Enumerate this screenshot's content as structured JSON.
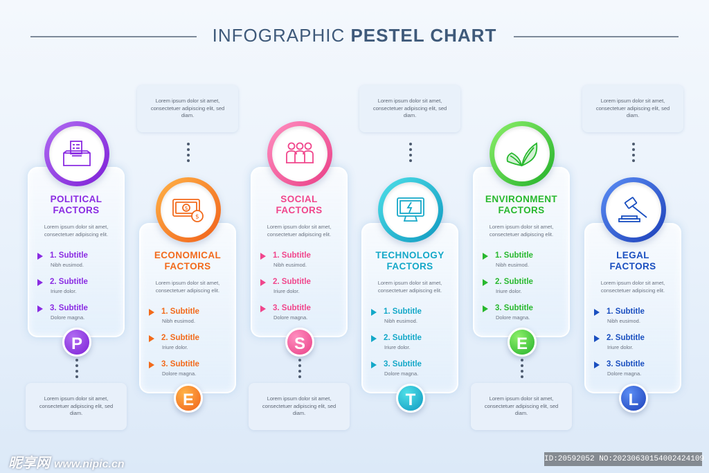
{
  "title": {
    "part1": "INFOGRAPHIC ",
    "part2": "PESTEL CHART"
  },
  "lorem_short": "Lorem ipsum dolor sit amet, consectetuer adipiscing elit.",
  "lorem_note": "Lorem ipsum dolor sit amet, consectetuer adipiscing elit, sed diam.",
  "factors": [
    {
      "letter": "P",
      "title_line1": "POLITICAL",
      "title_line2": "FACTORS",
      "color": "#8a2be2",
      "icon": "ballot-box-icon",
      "items": [
        {
          "title": "1. Subtitle",
          "sub": "Nibh eusimod."
        },
        {
          "title": "2. Subtitle",
          "sub": "Iriure dolor."
        },
        {
          "title": "3. Subtitle",
          "sub": "Dolore magna."
        }
      ]
    },
    {
      "letter": "E",
      "title_line1": "ECONOMICAL",
      "title_line2": "FACTORS",
      "color": "#f26a1b",
      "icon": "money-icon",
      "items": [
        {
          "title": "1. Subtitle",
          "sub": "Nibh eusimod."
        },
        {
          "title": "2. Subtitle",
          "sub": "Iriure dolor."
        },
        {
          "title": "3. Subtitle",
          "sub": "Dolore magna."
        }
      ]
    },
    {
      "letter": "S",
      "title_line1": "SOCIAL",
      "title_line2": "FACTORS",
      "color": "#f0468c",
      "icon": "people-icon",
      "items": [
        {
          "title": "1. Subtitle",
          "sub": "Nibh eusimod."
        },
        {
          "title": "2. Subtitle",
          "sub": "Iriure dolor."
        },
        {
          "title": "3. Subtitle",
          "sub": "Dolore magna."
        }
      ]
    },
    {
      "letter": "T",
      "title_line1": "TECHNOLOGY",
      "title_line2": "FACTORS",
      "color": "#14a8c8",
      "icon": "monitor-icon",
      "items": [
        {
          "title": "1. Subtitle",
          "sub": "Nibh eusimod."
        },
        {
          "title": "2. Subtitle",
          "sub": "Iriure dolor."
        },
        {
          "title": "3. Subtitle",
          "sub": "Dolore magna."
        }
      ]
    },
    {
      "letter": "E",
      "title_line1": "ENVIRONMENT",
      "title_line2": "FACTORS",
      "color": "#28b82e",
      "icon": "leaves-icon",
      "items": [
        {
          "title": "1. Subtitle",
          "sub": "Nibh eusimod."
        },
        {
          "title": "2. Subtitle",
          "sub": "Iriure dolor."
        },
        {
          "title": "3. Subtitle",
          "sub": "Dolore magna."
        }
      ]
    },
    {
      "letter": "L",
      "title_line1": "LEGAL",
      "title_line2": "FACTORS",
      "color": "#1a4fc0",
      "icon": "gavel-icon",
      "items": [
        {
          "title": "1. Subtitle",
          "sub": "Nibh eusimod."
        },
        {
          "title": "2. Subtitle",
          "sub": "Iriure dolor."
        },
        {
          "title": "3. Subtitle",
          "sub": "Dolore magna."
        }
      ]
    }
  ],
  "ring_gradients": [
    [
      "#b06cf2",
      "#7d1fd6"
    ],
    [
      "#ffb347",
      "#f0601a"
    ],
    [
      "#ff8fc0",
      "#e93f86"
    ],
    [
      "#4fe0e8",
      "#0f98c0"
    ],
    [
      "#8ef06a",
      "#22b02a"
    ],
    [
      "#5c8ef5",
      "#1c3fb8"
    ]
  ],
  "watermark": {
    "logo": "昵享网",
    "url": "www.nipic.cn",
    "id": "ID:20592052 NO:20230630154002424109"
  }
}
